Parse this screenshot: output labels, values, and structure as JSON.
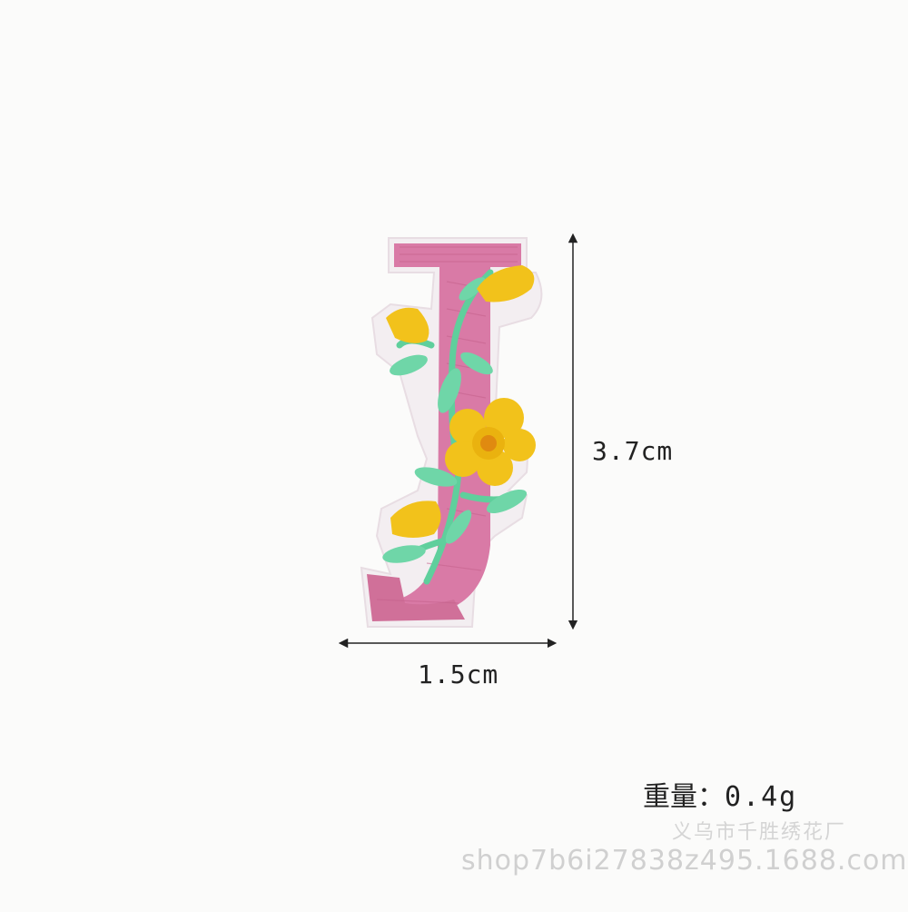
{
  "dimensions": {
    "height": "3.7cm",
    "width": "1.5cm"
  },
  "weight": {
    "label": "重量：",
    "value": "0.4g"
  },
  "watermark": {
    "shop_name": "义乌市千胜绣花厂",
    "url": "shop7b6i27838z495.1688.com"
  },
  "colors": {
    "letter_pink": "#d97aa6",
    "border_white": "#f3eef1",
    "flower_yellow": "#f2c21b",
    "leaf_green": "#6fd6a8",
    "background": "#fbfbfa"
  },
  "product": {
    "subject": "embroidered-letter-J-patch"
  }
}
